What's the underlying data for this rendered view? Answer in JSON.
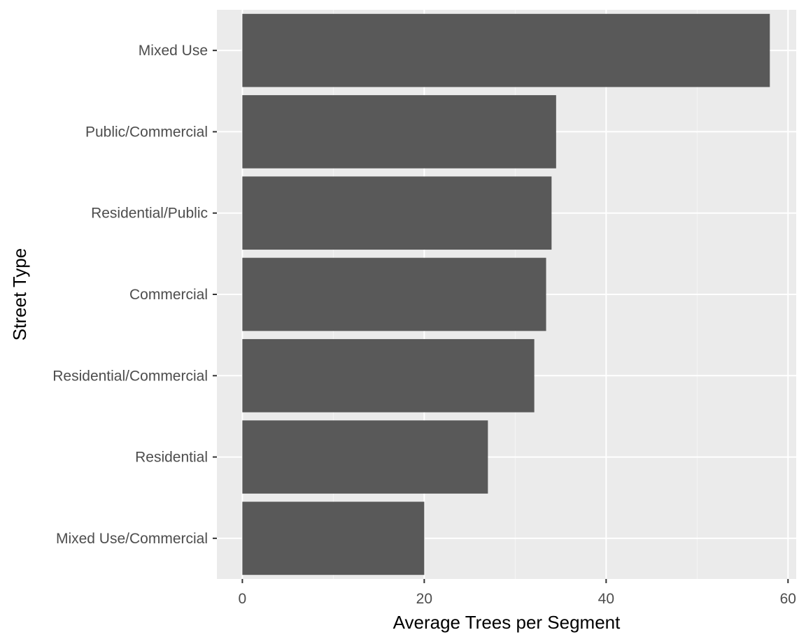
{
  "chart_data": {
    "type": "bar",
    "orientation": "horizontal",
    "categories": [
      "Mixed Use",
      "Public/Commercial",
      "Residential/Public",
      "Commercial",
      "Residential/Commercial",
      "Residential",
      "Mixed Use/Commercial"
    ],
    "values": [
      58,
      34.5,
      34,
      33.4,
      32.1,
      27,
      20
    ],
    "title": "",
    "xlabel": "Average Trees per Segment",
    "ylabel": "Street Type",
    "xlim": [
      -2.8,
      60.9
    ],
    "xticks": [
      0,
      20,
      40,
      60
    ],
    "xtick_labels": [
      "0",
      "20",
      "40",
      "60"
    ],
    "grid": true,
    "colors": {
      "bar": "#595959",
      "panel_background": "#ebebeb",
      "grid_major": "#ffffff",
      "grid_minor": "#f5f5f5",
      "tick_text": "#4d4d4d",
      "title_text": "#000000"
    }
  }
}
